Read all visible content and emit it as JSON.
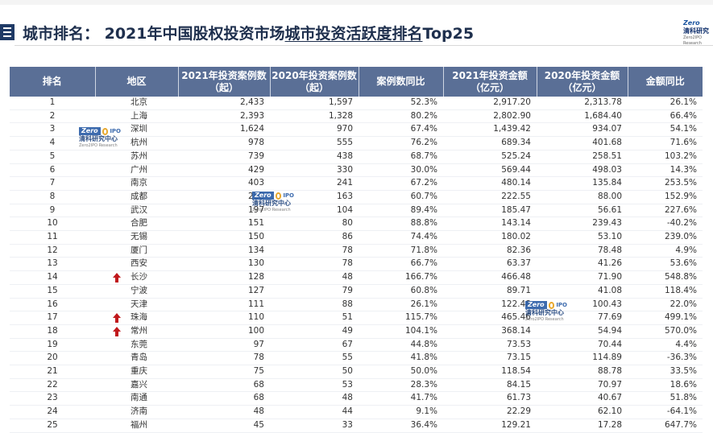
{
  "page": {
    "title_prefix": "城市排名： 2021年中国股权投资市场",
    "title_underlined": "城市投资活跃度排名",
    "title_suffix": "Top25"
  },
  "logo": {
    "brand": "Zero",
    "cn": "清科研究",
    "en": "Zero2IPO Research"
  },
  "watermark": {
    "brand": "Zero",
    "ipo": "IPO",
    "cn": "清科研究中心",
    "en": "Zero2IPO Research"
  },
  "table": {
    "headers": [
      "排名",
      "地区",
      "2021年投资案例数\n（起）",
      "2020年投资案例数\n（起）",
      "案例数同比",
      "2021年投资金额\n（亿元）",
      "2020年投资金额\n（亿元）",
      "金额同比"
    ],
    "rows": [
      [
        "1",
        "北京",
        "2,433",
        "1,597",
        "52.3%",
        "2,917.20",
        "2,313.78",
        "26.1%"
      ],
      [
        "2",
        "上海",
        "2,393",
        "1,328",
        "80.2%",
        "2,802.90",
        "1,684.40",
        "66.4%"
      ],
      [
        "3",
        "深圳",
        "1,624",
        "970",
        "67.4%",
        "1,439.42",
        "934.07",
        "54.1%"
      ],
      [
        "4",
        "杭州",
        "978",
        "555",
        "76.2%",
        "689.34",
        "401.68",
        "71.6%"
      ],
      [
        "5",
        "苏州",
        "739",
        "438",
        "68.7%",
        "525.24",
        "258.51",
        "103.2%"
      ],
      [
        "6",
        "广州",
        "429",
        "330",
        "30.0%",
        "569.44",
        "498.03",
        "14.3%"
      ],
      [
        "7",
        "南京",
        "403",
        "241",
        "67.2%",
        "480.14",
        "135.84",
        "253.5%"
      ],
      [
        "8",
        "成都",
        "262",
        "163",
        "60.7%",
        "222.55",
        "88.00",
        "152.9%"
      ],
      [
        "9",
        "武汉",
        "197",
        "104",
        "89.4%",
        "185.47",
        "56.61",
        "227.6%"
      ],
      [
        "10",
        "合肥",
        "151",
        "80",
        "88.8%",
        "143.14",
        "239.43",
        "-40.2%"
      ],
      [
        "11",
        "无锡",
        "150",
        "86",
        "74.4%",
        "180.02",
        "53.10",
        "239.0%"
      ],
      [
        "12",
        "厦门",
        "134",
        "78",
        "71.8%",
        "82.36",
        "78.48",
        "4.9%"
      ],
      [
        "13",
        "西安",
        "130",
        "78",
        "66.7%",
        "63.37",
        "41.26",
        "53.6%"
      ],
      [
        "14",
        "长沙",
        "128",
        "48",
        "166.7%",
        "466.48",
        "71.90",
        "548.8%"
      ],
      [
        "15",
        "宁波",
        "127",
        "79",
        "60.8%",
        "89.71",
        "41.08",
        "118.4%"
      ],
      [
        "16",
        "天津",
        "111",
        "88",
        "26.1%",
        "122.48",
        "100.43",
        "22.0%"
      ],
      [
        "17",
        "珠海",
        "110",
        "51",
        "115.7%",
        "465.46",
        "77.69",
        "499.1%"
      ],
      [
        "18",
        "常州",
        "100",
        "49",
        "104.1%",
        "368.14",
        "54.94",
        "570.0%"
      ],
      [
        "19",
        "东莞",
        "97",
        "67",
        "44.8%",
        "73.53",
        "70.44",
        "4.4%"
      ],
      [
        "20",
        "青岛",
        "78",
        "55",
        "41.8%",
        "73.15",
        "114.89",
        "-36.3%"
      ],
      [
        "21",
        "重庆",
        "75",
        "50",
        "50.0%",
        "118.54",
        "88.78",
        "33.5%"
      ],
      [
        "22",
        "嘉兴",
        "68",
        "53",
        "28.3%",
        "84.15",
        "70.97",
        "18.6%"
      ],
      [
        "23",
        "南通",
        "68",
        "48",
        "41.7%",
        "61.73",
        "40.67",
        "51.8%"
      ],
      [
        "24",
        "济南",
        "48",
        "44",
        "9.1%",
        "22.29",
        "62.10",
        "-64.1%"
      ],
      [
        "25",
        "福州",
        "45",
        "33",
        "36.4%",
        "129.21",
        "17.28",
        "647.7%"
      ]
    ],
    "up_arrow_ranks": [
      "14",
      "17",
      "18"
    ],
    "arrow_color": "#c0181c",
    "header_color": "#5a6f96"
  }
}
